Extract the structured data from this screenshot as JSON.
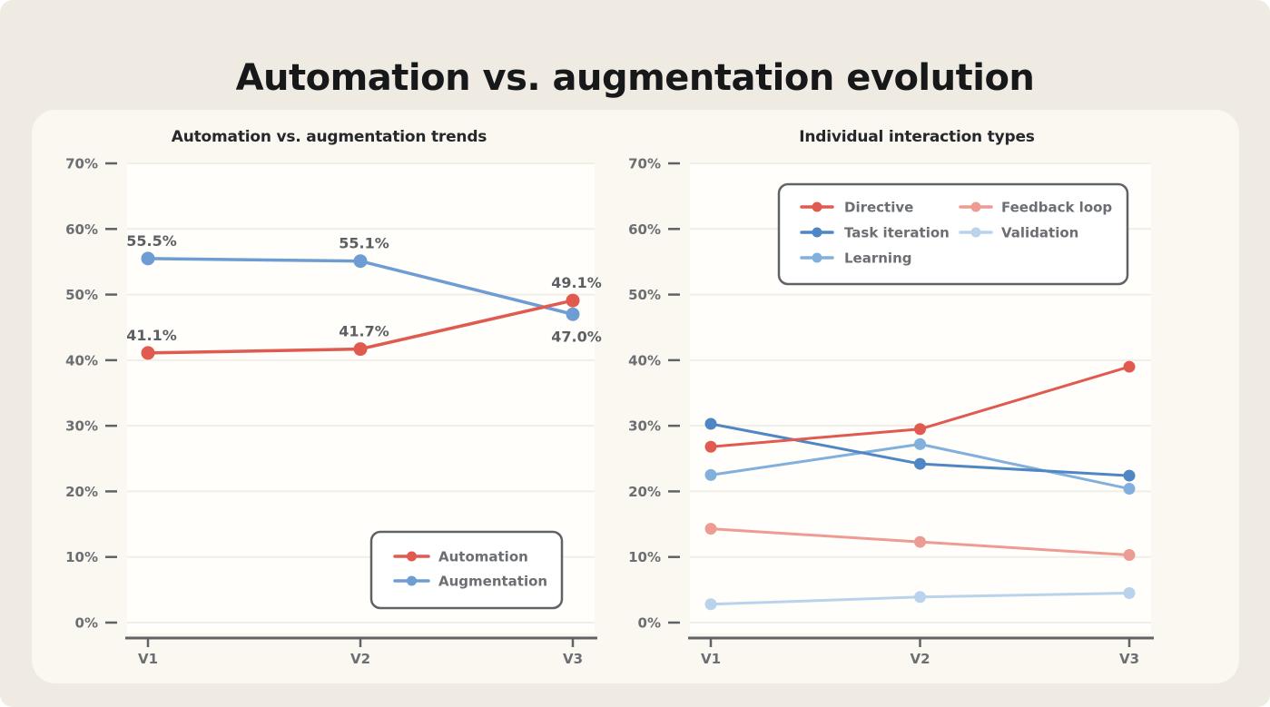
{
  "page": {
    "title": "Automation vs. augmentation evolution"
  },
  "chart_data": [
    {
      "type": "line",
      "title": "Automation vs. augmentation trends",
      "categories": [
        "V1",
        "V2",
        "V3"
      ],
      "xlabel": "",
      "ylabel": "",
      "ylim": [
        0,
        70
      ],
      "ytick_step": 10,
      "ytick_suffix": "%",
      "grid": "horizontal",
      "legend_position": "lower right",
      "series": [
        {
          "name": "Automation",
          "color": "#E05A50",
          "values": [
            41.1,
            41.7,
            49.1
          ],
          "point_labels": [
            "41.1%",
            "41.7%",
            "49.1%"
          ],
          "label_placement": [
            "above",
            "above",
            "above"
          ]
        },
        {
          "name": "Augmentation",
          "color": "#6D9DD3",
          "values": [
            55.5,
            55.1,
            47.0
          ],
          "point_labels": [
            "55.5%",
            "55.1%",
            "47.0%"
          ],
          "label_placement": [
            "above",
            "above",
            "below"
          ]
        }
      ]
    },
    {
      "type": "line",
      "title": "Individual interaction types",
      "categories": [
        "V1",
        "V2",
        "V3"
      ],
      "xlabel": "",
      "ylabel": "",
      "ylim": [
        0,
        70
      ],
      "ytick_step": 10,
      "ytick_suffix": "%",
      "grid": "horizontal",
      "legend_position": "upper left",
      "series": [
        {
          "name": "Directive",
          "color": "#E05A50",
          "values": [
            26.8,
            29.5,
            39.0
          ]
        },
        {
          "name": "Task iteration",
          "color": "#4F86C4",
          "values": [
            30.3,
            24.2,
            22.4
          ]
        },
        {
          "name": "Learning",
          "color": "#82B0DC",
          "values": [
            22.5,
            27.2,
            20.4
          ]
        },
        {
          "name": "Feedback loop",
          "color": "#EC9C92",
          "values": [
            14.3,
            12.3,
            10.3
          ]
        },
        {
          "name": "Validation",
          "color": "#BAD3EC",
          "values": [
            2.8,
            3.9,
            4.5
          ]
        }
      ]
    }
  ],
  "colors": {
    "canvas": "#EFEBE2",
    "card": "#FAF8F1",
    "plot_bg": "#FFFEFB",
    "gridline": "#F1EEE6",
    "axis": "#5F6365",
    "tick_label": "#6B6E72",
    "data_label": "#5D6063",
    "title": "#17181A",
    "chart_title": "#26282B",
    "legend_border": "#606265",
    "legend_bg": "#FFFFFF"
  }
}
